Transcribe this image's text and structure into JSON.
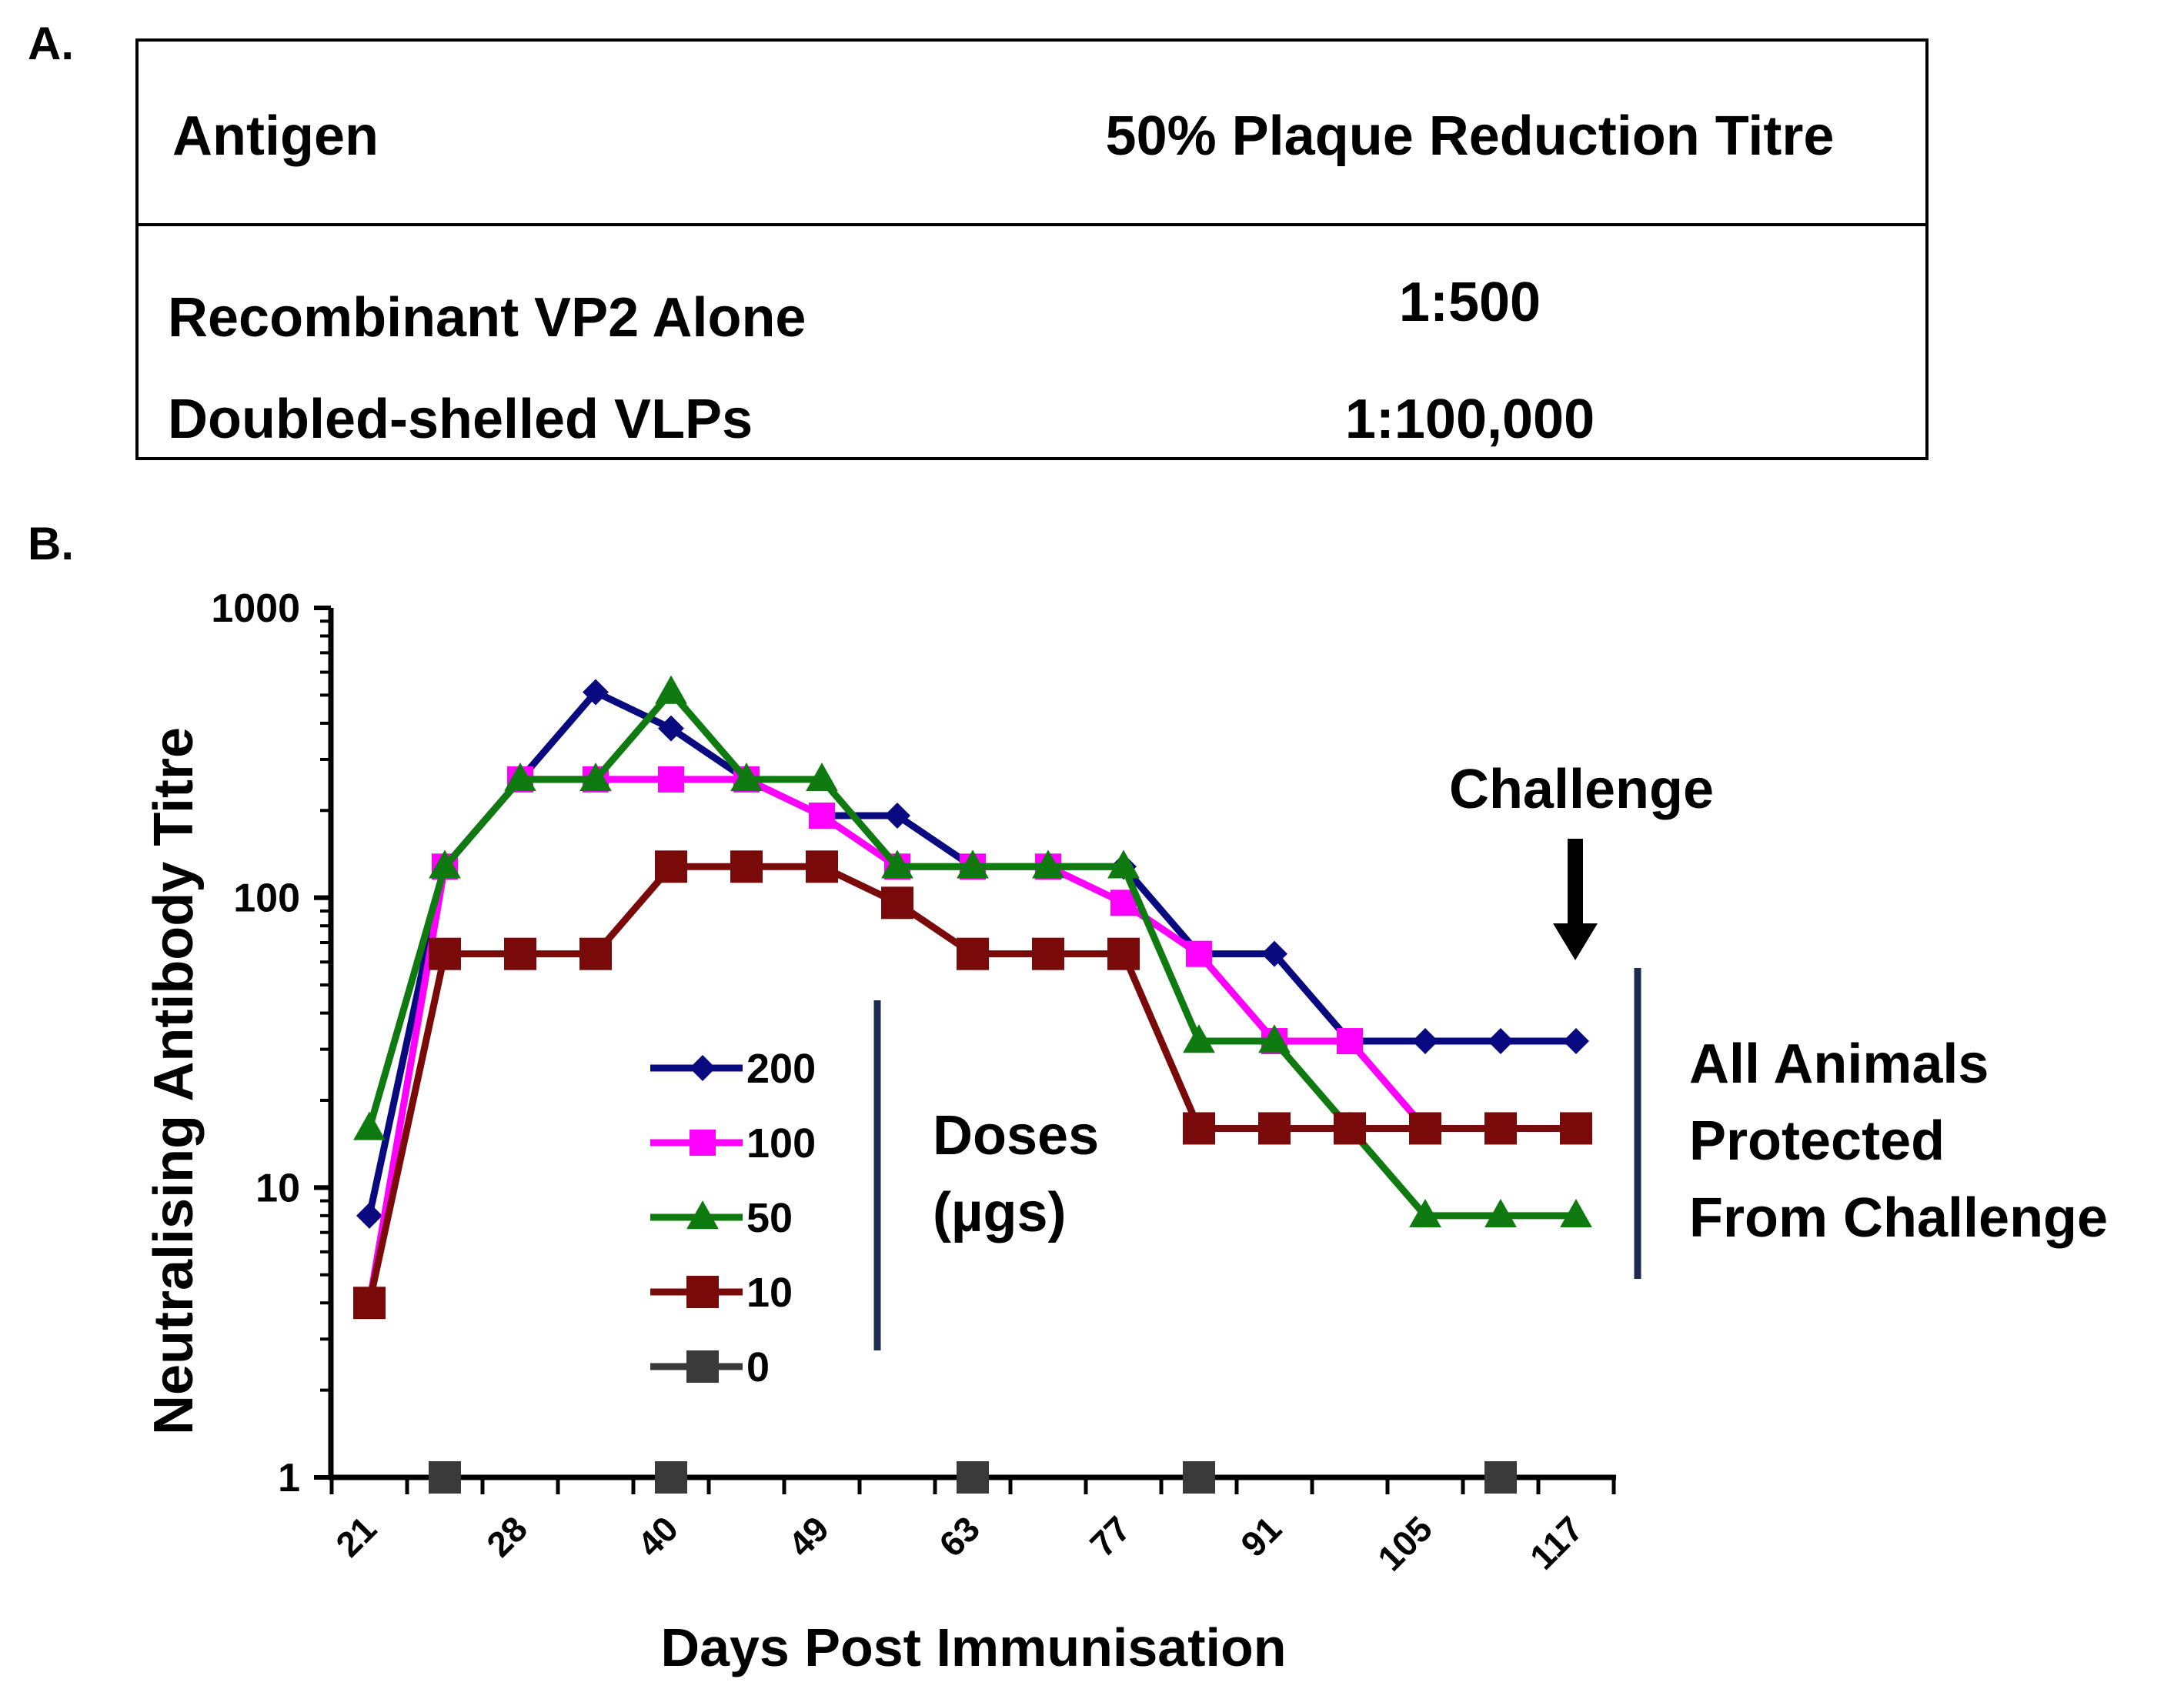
{
  "panel_labels": {
    "a": "A.",
    "b": "B."
  },
  "table": {
    "headers": [
      "Antigen",
      "50% Plaque Reduction Titre"
    ],
    "rows": [
      [
        "Recombinant VP2 Alone",
        "1:500"
      ],
      [
        "Doubled-shelled VLPs",
        "1:100,000"
      ]
    ]
  },
  "chart_data": {
    "type": "line",
    "y_scale": "log",
    "ylim": [
      1,
      1000
    ],
    "xlabel": "Days Post Immunisation",
    "ylabel": "Neutralising Antibody Titre",
    "y_tick_labels": [
      "1000",
      "100",
      "10",
      "1"
    ],
    "x_tick_labels": [
      "21",
      "28",
      "40",
      "49",
      "63",
      "77",
      "91",
      "105",
      "117"
    ],
    "x_points": [
      "21",
      "",
      "28",
      "",
      "40",
      "",
      "49",
      "",
      "63",
      "",
      "77",
      "",
      "91",
      "",
      "105",
      "",
      "117"
    ],
    "legend_title": [
      "Doses",
      "(µgs)"
    ],
    "series": [
      {
        "name": "200",
        "color": "#0a0a80",
        "marker": "diamond",
        "values": [
          8,
          128,
          256,
          512,
          384,
          256,
          192,
          192,
          128,
          128,
          128,
          64,
          64,
          32,
          32,
          32,
          32
        ]
      },
      {
        "name": "100",
        "color": "#ff00ff",
        "marker": "square",
        "values": [
          4,
          128,
          256,
          256,
          256,
          256,
          192,
          128,
          128,
          128,
          96,
          64,
          32,
          32,
          16,
          16,
          16
        ]
      },
      {
        "name": "50",
        "color": "#0f7a0f",
        "marker": "triangle",
        "values": [
          16,
          128,
          256,
          256,
          512,
          256,
          256,
          128,
          128,
          128,
          128,
          32,
          32,
          16,
          8,
          8,
          8
        ]
      },
      {
        "name": "10",
        "color": "#7a0a0a",
        "marker": "bigsquare",
        "values": [
          4,
          64,
          64,
          64,
          128,
          128,
          128,
          96,
          64,
          64,
          64,
          16,
          16,
          16,
          16,
          16,
          16
        ]
      },
      {
        "name": "0",
        "color": "#3a3a3a",
        "marker": "bigsquare",
        "points": [
          [
            1,
            1
          ],
          [
            4,
            1
          ],
          [
            8,
            1
          ],
          [
            11,
            1
          ],
          [
            15,
            1
          ]
        ]
      }
    ],
    "annotations": {
      "challenge": "Challenge",
      "protected": [
        "All Animals",
        "Protected",
        "From Challenge"
      ]
    }
  }
}
